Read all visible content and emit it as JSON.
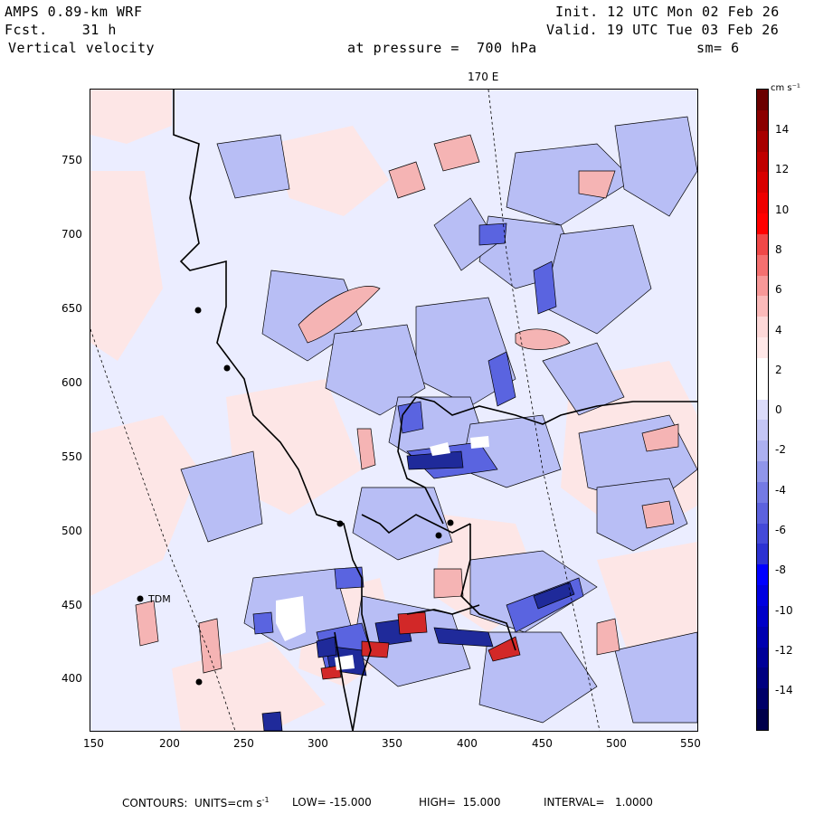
{
  "header": {
    "model": "AMPS 0.89-km WRF",
    "forecast": "Fcst.    31 h",
    "field": "Vertical velocity",
    "pressure": "at pressure =  700 hPa",
    "init": "Init. 12 UTC Mon 02 Feb 26",
    "valid": "Valid. 19 UTC Tue 03 Feb 26",
    "smooth": "sm= 6"
  },
  "map": {
    "meridian_label": "170 E",
    "x_ticks": [
      "150",
      "200",
      "250",
      "300",
      "350",
      "400",
      "450",
      "500",
      "550"
    ],
    "y_ticks": [
      "750",
      "700",
      "650",
      "600",
      "550",
      "500",
      "450",
      "400"
    ],
    "station_label": "TDM",
    "colors": {
      "ocean_bg": "#ebedff",
      "weak_up": "#fde6e6",
      "up": "#f5b4b4",
      "down": "#b8bef5",
      "strong_down": "#5a64e0",
      "very_strong_down": "#1f2a9a",
      "strong_up": "#d22828"
    }
  },
  "colorbar": {
    "unit": "cm s⁻¹",
    "labels": [
      "14",
      "12",
      "10",
      "8",
      "6",
      "4",
      "2",
      "0",
      "-2",
      "-4",
      "-6",
      "-8",
      "-10",
      "-12",
      "-14"
    ],
    "colors": [
      "#6b0000",
      "#8b0000",
      "#a80000",
      "#c00000",
      "#d80000",
      "#ee0000",
      "#ff0000",
      "#f04848",
      "#f57070",
      "#f89898",
      "#fbbaba",
      "#fdd8d8",
      "#ffe8e8",
      "#ffffff",
      "#ffffff",
      "#dcdcfa",
      "#c4c6f5",
      "#acb0f0",
      "#9096ea",
      "#747ae4",
      "#5c62de",
      "#444ad8",
      "#2c32d2",
      "#0000ff",
      "#0000e0",
      "#0000c8",
      "#0000b0",
      "#000098",
      "#000080",
      "#000068",
      "#00004a"
    ]
  },
  "footer": {
    "contours": "CONTOURS:  UNITS=cm s",
    "exp": "-1",
    "low": "LOW= -15.000",
    "high": "HIGH=  15.000",
    "interval": "INTERVAL=   1.0000"
  }
}
